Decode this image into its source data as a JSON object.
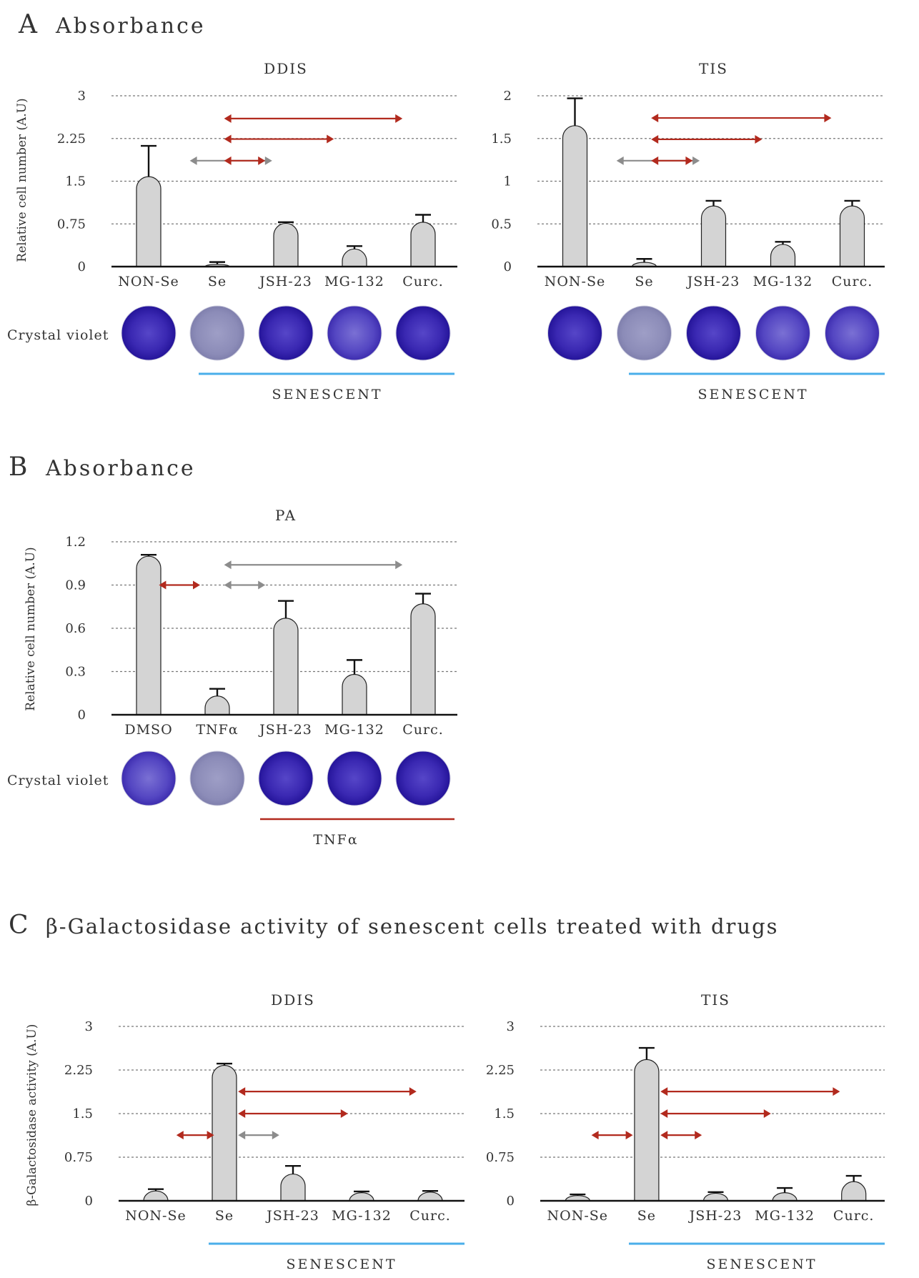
{
  "colors": {
    "bar_fill": "#d4d4d4",
    "bar_stroke": "#222222",
    "grid": "#777777",
    "arrow_red": "#b22a1e",
    "arrow_gray": "#8c8c8c",
    "senescent_line": "#4aaeea",
    "tnf_line": "#b22a1e",
    "stain_dark": "#2a1aa8",
    "stain_faint": "#8c8cb4"
  },
  "sections": {
    "a": {
      "letter": "A",
      "title": "Absorbance"
    },
    "b": {
      "letter": "B",
      "title": "Absorbance"
    },
    "c": {
      "letter": "C",
      "title": "β-Galactosidase activity of senescent cells treated with drugs"
    }
  },
  "row_labels": {
    "crystal_violet_a": "Crystal violet",
    "crystal_violet_b": "Crystal violet"
  },
  "group_labels": {
    "a_ddis": "SENESCENT",
    "a_tis": "SENESCENT",
    "b_pa": "TNFα",
    "c_ddis": "SENESCENT",
    "c_tis": "SENESCENT"
  },
  "chart_data": [
    {
      "id": "a_ddis",
      "type": "bar",
      "title": "DDIS",
      "ylabel": "Relative cell number (A.U)",
      "categories": [
        "NON-Se",
        "Se",
        "JSH-23",
        "MG-132",
        "Curc."
      ],
      "values": [
        1.58,
        0.04,
        0.76,
        0.31,
        0.78
      ],
      "errors": [
        0.54,
        0.04,
        0.02,
        0.05,
        0.13
      ],
      "yticks": [
        "0",
        "0.75",
        "1.5",
        "2.25",
        "3"
      ],
      "ylim": [
        0,
        3
      ],
      "grid": true,
      "arrows": [
        {
          "from": 0.6,
          "to": 1.8,
          "y": 1.86,
          "color": "gray"
        },
        {
          "from": 1.1,
          "to": 1.7,
          "y": 1.86,
          "color": "red"
        },
        {
          "from": 1.1,
          "to": 2.7,
          "y": 2.24,
          "color": "red"
        },
        {
          "from": 1.1,
          "to": 3.7,
          "y": 2.6,
          "color": "red"
        }
      ]
    },
    {
      "id": "a_tis",
      "type": "bar",
      "title": "TIS",
      "ylabel": "",
      "categories": [
        "NON-Se",
        "Se",
        "JSH-23",
        "MG-132",
        "Curc."
      ],
      "values": [
        1.65,
        0.05,
        0.71,
        0.26,
        0.71
      ],
      "errors": [
        0.32,
        0.04,
        0.06,
        0.03,
        0.06
      ],
      "yticks": [
        "0",
        "0.5",
        "1",
        "1.5",
        "2"
      ],
      "ylim": [
        0,
        2
      ],
      "grid": true,
      "arrows": [
        {
          "from": 0.6,
          "to": 1.8,
          "y": 1.24,
          "color": "gray"
        },
        {
          "from": 1.1,
          "to": 1.7,
          "y": 1.24,
          "color": "red"
        },
        {
          "from": 1.1,
          "to": 2.7,
          "y": 1.49,
          "color": "red"
        },
        {
          "from": 1.1,
          "to": 3.7,
          "y": 1.74,
          "color": "red"
        }
      ]
    },
    {
      "id": "b_pa",
      "type": "bar",
      "title": "PA",
      "ylabel": "Relative cell number (A.U)",
      "categories": [
        "DMSO",
        "TNFα",
        "JSH-23",
        "MG-132",
        "Curc."
      ],
      "values": [
        1.1,
        0.13,
        0.67,
        0.28,
        0.77
      ],
      "errors": [
        0.01,
        0.05,
        0.12,
        0.1,
        0.07
      ],
      "yticks": [
        "0",
        "0.3",
        "0.6",
        "0.9",
        "1.2"
      ],
      "ylim": [
        0,
        1.2
      ],
      "grid": true,
      "arrows": [
        {
          "from": 0.15,
          "to": 0.75,
          "y": 0.9,
          "color": "red"
        },
        {
          "from": 1.1,
          "to": 1.7,
          "y": 0.9,
          "color": "gray"
        },
        {
          "from": 1.1,
          "to": 3.7,
          "y": 1.04,
          "color": "gray"
        }
      ]
    },
    {
      "id": "c_ddis",
      "type": "bar",
      "title": "DDIS",
      "ylabel": "β-Galactosidase activity (A.U)",
      "categories": [
        "NON-Se",
        "Se",
        "JSH-23",
        "MG-132",
        "Curc."
      ],
      "values": [
        0.17,
        2.33,
        0.46,
        0.14,
        0.15
      ],
      "errors": [
        0.03,
        0.03,
        0.14,
        0.02,
        0.02
      ],
      "yticks": [
        "0",
        "0.75",
        "1.5",
        "2.25",
        "3"
      ],
      "ylim": [
        0,
        3
      ],
      "grid": true,
      "arrows": [
        {
          "from": 0.3,
          "to": 0.85,
          "y": 1.13,
          "color": "red"
        },
        {
          "from": 1.2,
          "to": 1.8,
          "y": 1.13,
          "color": "gray"
        },
        {
          "from": 1.2,
          "to": 2.8,
          "y": 1.5,
          "color": "red"
        },
        {
          "from": 1.2,
          "to": 3.8,
          "y": 1.88,
          "color": "red"
        }
      ]
    },
    {
      "id": "c_tis",
      "type": "bar",
      "title": "TIS",
      "ylabel": "",
      "categories": [
        "NON-Se",
        "Se",
        "JSH-23",
        "MG-132",
        "Curc."
      ],
      "values": [
        0.09,
        2.43,
        0.13,
        0.14,
        0.33
      ],
      "errors": [
        0.02,
        0.2,
        0.02,
        0.08,
        0.1
      ],
      "yticks": [
        "0",
        "0.75",
        "1.5",
        "2.25",
        "3"
      ],
      "ylim": [
        0,
        3
      ],
      "grid": true,
      "arrows": [
        {
          "from": 0.2,
          "to": 0.8,
          "y": 1.13,
          "color": "red"
        },
        {
          "from": 1.2,
          "to": 1.8,
          "y": 1.13,
          "color": "red"
        },
        {
          "from": 1.2,
          "to": 2.8,
          "y": 1.5,
          "color": "red"
        },
        {
          "from": 1.2,
          "to": 3.8,
          "y": 1.88,
          "color": "red"
        }
      ]
    }
  ],
  "crystal_violet": [
    {
      "panel": "a_ddis",
      "wells": [
        "dark",
        "faint",
        "dark",
        "medium",
        "dark"
      ]
    },
    {
      "panel": "a_tis",
      "wells": [
        "dark",
        "faint",
        "dark",
        "medium",
        "medium"
      ]
    },
    {
      "panel": "b_pa",
      "wells": [
        "medium",
        "faint",
        "dark",
        "dark",
        "dark"
      ]
    }
  ]
}
